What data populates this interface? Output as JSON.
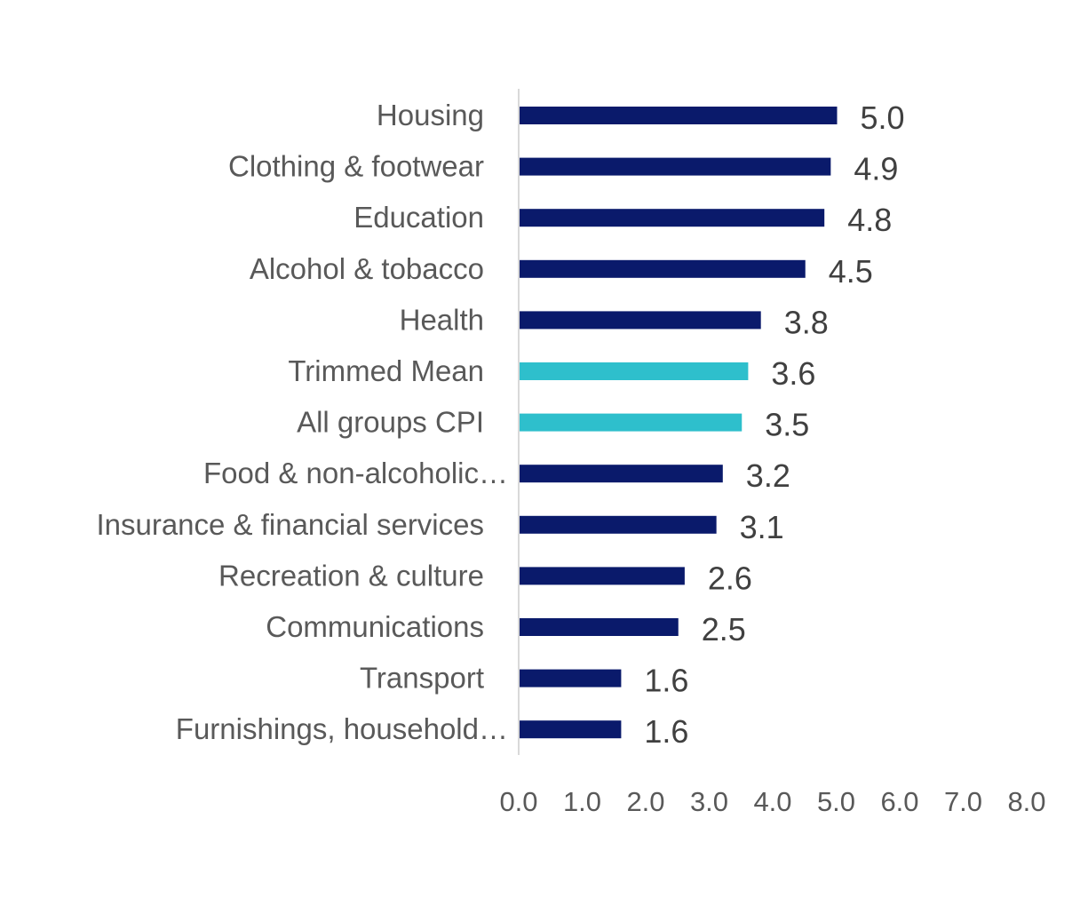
{
  "chart_data": {
    "type": "bar",
    "orientation": "horizontal",
    "title": "",
    "xlabel": "",
    "ylabel": "",
    "xlim": [
      0,
      8
    ],
    "x_ticks": [
      "0.0",
      "1.0",
      "2.0",
      "3.0",
      "4.0",
      "5.0",
      "6.0",
      "7.0",
      "8.0"
    ],
    "grid": false,
    "legend": "none",
    "colors": {
      "default": "#0a1a6b",
      "highlight": "#2ebfcc",
      "axis": "#d9d9d9"
    },
    "categories": [
      "Housing",
      "Clothing & footwear",
      "Education",
      "Alcohol & tobacco",
      "Health",
      "Trimmed Mean",
      "All groups CPI",
      "Food & non-alcoholic…",
      "Insurance & financial services",
      "Recreation & culture",
      "Communications",
      "Transport",
      "Furnishings, household…"
    ],
    "values": [
      5.0,
      4.9,
      4.8,
      4.5,
      3.8,
      3.6,
      3.5,
      3.2,
      3.1,
      2.6,
      2.5,
      1.6,
      1.6
    ],
    "value_labels": [
      "5.0",
      "4.9",
      "4.8",
      "4.5",
      "3.8",
      "3.6",
      "3.5",
      "3.2",
      "3.1",
      "2.6",
      "2.5",
      "1.6",
      "1.6"
    ],
    "highlighted": [
      false,
      false,
      false,
      false,
      false,
      true,
      true,
      false,
      false,
      false,
      false,
      false,
      false
    ]
  }
}
